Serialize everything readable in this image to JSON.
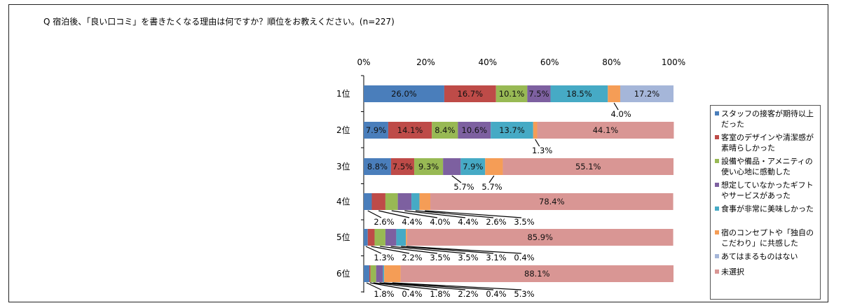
{
  "question": "Q 宿泊後、「良い口コミ」を書きたくなる理由は何ですか？順位をお教えください。(n=227)",
  "chart_data": {
    "type": "bar",
    "orientation": "horizontal",
    "stacked": true,
    "percent_stacked": true,
    "xlim": [
      0,
      100
    ],
    "x_ticks": [
      "0%",
      "20%",
      "40%",
      "60%",
      "80%",
      "100%"
    ],
    "categories": [
      "1位",
      "2位",
      "3位",
      "4位",
      "5位",
      "6位"
    ],
    "series": [
      {
        "name": "スタッフの接客が期待以上だった",
        "color": "#4a7ebb",
        "values": [
          26.0,
          7.9,
          8.8,
          2.6,
          1.3,
          1.8
        ]
      },
      {
        "name": "客室のデザインや清潔感が素晴らしかった",
        "color": "#be4b48",
        "values": [
          16.7,
          14.1,
          7.5,
          4.4,
          2.2,
          0.4
        ]
      },
      {
        "name": "設備や備品・アメニティの使い心地に感動した",
        "color": "#98b954",
        "values": [
          10.1,
          8.4,
          9.3,
          4.0,
          3.5,
          1.8
        ]
      },
      {
        "name": "想定していなかったギフトやサービスがあった",
        "color": "#7d60a0",
        "values": [
          7.5,
          10.6,
          5.7,
          4.4,
          3.5,
          2.2
        ]
      },
      {
        "name": "食事が非常に美味しかった",
        "color": "#46aac5",
        "values": [
          18.5,
          13.7,
          7.9,
          2.6,
          3.1,
          0.4
        ]
      },
      {
        "name": "宿のコンセプトや「独自のこだわり」に共感した",
        "color": "#f59d56",
        "values": [
          4.0,
          1.3,
          5.7,
          3.5,
          0.4,
          5.3
        ]
      },
      {
        "name": "あてはまるものはない",
        "color": "#a5b6d9",
        "values": [
          17.2,
          0,
          0,
          0,
          0,
          0
        ]
      },
      {
        "name": "未選択",
        "color": "#d99694",
        "values": [
          0,
          44.1,
          55.1,
          78.4,
          85.9,
          88.1
        ]
      }
    ],
    "data_labels": [
      [
        "26.0%",
        "16.7%",
        "10.1%",
        "7.5%",
        "18.5%",
        "4.0%",
        "17.2%",
        null
      ],
      [
        "7.9%",
        "14.1%",
        "8.4%",
        "10.6%",
        "13.7%",
        "1.3%",
        null,
        "44.1%"
      ],
      [
        "8.8%",
        "7.5%",
        "9.3%",
        "5.7%",
        "7.9%",
        "5.7%",
        null,
        "55.1%"
      ],
      [
        "2.6%",
        "4.4%",
        "4.0%",
        "4.4%",
        "2.6%",
        "3.5%",
        null,
        "78.4%"
      ],
      [
        "1.3%",
        "2.2%",
        "3.5%",
        "3.5%",
        "3.1%",
        "0.4%",
        null,
        "85.9%"
      ],
      [
        "1.8%",
        "0.4%",
        "1.8%",
        "2.2%",
        "0.4%",
        "5.3%",
        null,
        "88.1%"
      ]
    ],
    "legend_position": "right",
    "grid": false
  }
}
